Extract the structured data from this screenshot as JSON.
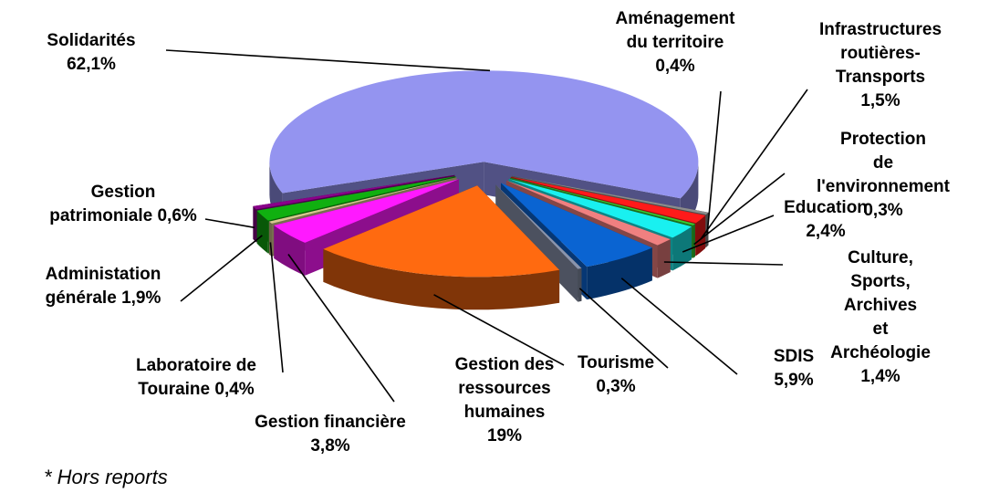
{
  "chart_data": {
    "type": "pie",
    "categories": [
      "Solidarités",
      "Aménagement\ndu territoire",
      "Infrastructures\nroutières-\nTransports",
      "Protection\nde l'environnement",
      "Education",
      "Culture, Sports,\nArchives\net Archéologie",
      "SDIS",
      "Tourisme",
      "Gestion des\nressources\nhumaines",
      "Gestion financière",
      "Laboratoire de\nTouraine",
      "Administation\ngénérale",
      "Gestion\npatrimoniale"
    ],
    "values": [
      62.1,
      0.4,
      1.5,
      0.3,
      2.4,
      1.4,
      5.9,
      0.3,
      19,
      3.8,
      0.4,
      1.9,
      0.6
    ],
    "value_labels": [
      "62,1%",
      "0,4%",
      "1,5%",
      "0,3%",
      "2,4%",
      "1,4%",
      "5,9%",
      "0,3%",
      "19%",
      "3,8%",
      "0,4%",
      "1,9%",
      "0,6%"
    ],
    "colors": [
      "#9494f0",
      "#8c8c8c",
      "#ff1a1a",
      "#33cc33",
      "#19f0f0",
      "#f08080",
      "#0a64d2",
      "#8a94ac",
      "#ff6a10",
      "#ff19ff",
      "#d8c890",
      "#10b010",
      "#8a008a"
    ],
    "footnote": "* Hors reports"
  }
}
